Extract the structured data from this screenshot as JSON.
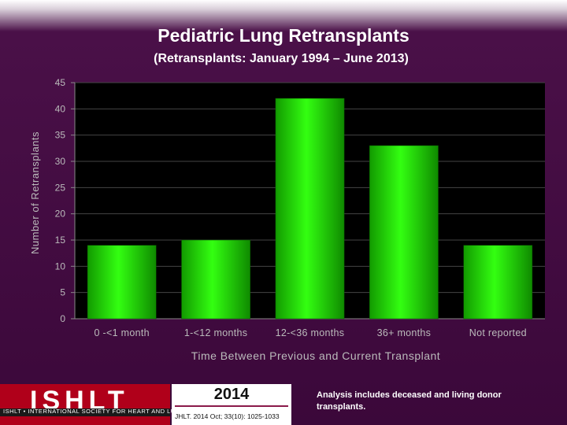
{
  "header": {
    "title": "Pediatric Lung Retransplants",
    "subtitle": "(Retransplants: January 1994 – June 2013)"
  },
  "chart_data": {
    "type": "bar",
    "title": "Pediatric Lung Retransplants",
    "subtitle": "(Retransplants: January 1994 – June 2013)",
    "categories": [
      "0 -<1 month",
      "1-<12 months",
      "12-<36 months",
      "36+ months",
      "Not reported"
    ],
    "values": [
      14,
      15,
      42,
      33,
      14
    ],
    "xlabel": "Time Between Previous and Current Transplant",
    "ylabel": "Number of Retransplants",
    "ylim": [
      0,
      45
    ],
    "yticks": [
      0,
      5,
      10,
      15,
      20,
      25,
      30,
      35,
      40,
      45
    ],
    "grid": true,
    "legend": "none",
    "bar_color": "#22dd00",
    "plot_bg": "#000000"
  },
  "footer": {
    "logo_text": "ISHLT",
    "logo_tagline": "ISHLT • INTERNATIONAL SOCIETY FOR HEART AND LUNG TRANSPLANTATION",
    "year": "2014",
    "citation": "JHLT. 2014 Oct; 33(10): 1025-1033",
    "note": "Analysis includes deceased and living donor transplants."
  },
  "colors": {
    "background": "#3b083a",
    "accent": "#b0001a"
  }
}
